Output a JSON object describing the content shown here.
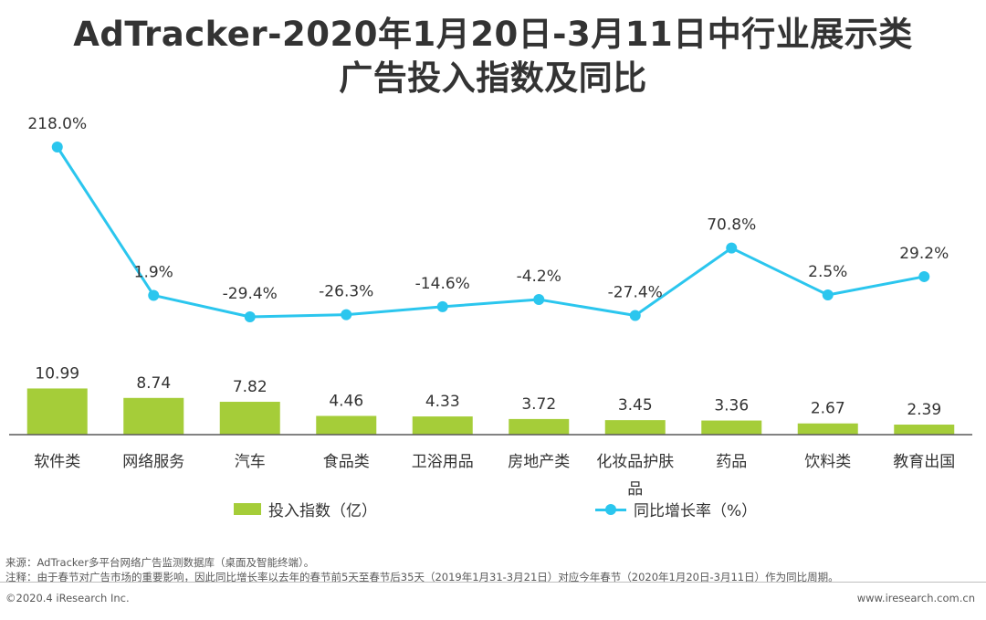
{
  "title": {
    "line1": "AdTracker-2020年1月20日-3月11日中行业展示类",
    "line2": "广告投入指数及同比"
  },
  "colors": {
    "bar": "#a5cd39",
    "line": "#2bc6ee",
    "axis": "#595959",
    "text": "#333333"
  },
  "chart_data": {
    "type": "bar+line",
    "categories": [
      "软件类",
      "网络服务",
      "汽车",
      "食品类",
      "卫浴用品",
      "房地产类",
      "化妆品护肤品",
      "药品",
      "饮料类",
      "教育出国"
    ],
    "category_lines": [
      [
        "软件类"
      ],
      [
        "网络服务"
      ],
      [
        "汽车"
      ],
      [
        "食品类"
      ],
      [
        "卫浴用品"
      ],
      [
        "房地产类"
      ],
      [
        "化妆品护肤",
        "品"
      ],
      [
        "药品"
      ],
      [
        "饮料类"
      ],
      [
        "教育出国"
      ]
    ],
    "series": [
      {
        "name": "投入指数（亿）",
        "type": "bar",
        "values": [
          10.99,
          8.74,
          7.82,
          4.46,
          4.33,
          3.72,
          3.45,
          3.36,
          2.67,
          2.39
        ],
        "labels": [
          "10.99",
          "8.74",
          "7.82",
          "4.46",
          "4.33",
          "3.72",
          "3.45",
          "3.36",
          "2.67",
          "2.39"
        ]
      },
      {
        "name": "同比增长率（%）",
        "type": "line",
        "values": [
          218.0,
          1.9,
          -29.4,
          -26.3,
          -14.6,
          -4.2,
          -27.4,
          70.8,
          2.5,
          29.2
        ],
        "labels": [
          "218.0%",
          "1.9%",
          "-29.4%",
          "-26.3%",
          "-14.6%",
          "-4.2%",
          "-27.4%",
          "70.8%",
          "2.5%",
          "29.2%"
        ]
      }
    ],
    "legend": [
      "投入指数（亿）",
      "同比增长率（%）"
    ]
  },
  "footer": {
    "source": "来源：AdTracker多平台网络广告监测数据库（桌面及智能终端）。",
    "note": "注释：由于春节对广告市场的重要影响，因此同比增长率以去年的春节前5天至春节后35天（2019年1月31-3月21日）对应今年春节（2020年1月20日-3月11日）作为同比周期。",
    "copyright": "©2020.4 iResearch Inc.",
    "website": "www.iresearch.com.cn"
  }
}
